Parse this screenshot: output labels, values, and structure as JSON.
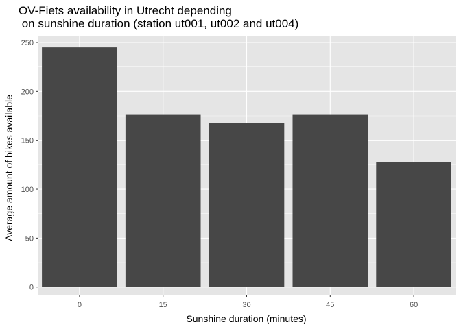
{
  "chart_data": {
    "type": "bar",
    "title_lines": [
      "OV-Fiets availability in Utrecht depending",
      " on sunshine duration (station ut001, ut002 and ut004)"
    ],
    "xlabel": "Sunshine duration (minutes)",
    "ylabel": "Average amount of bikes available",
    "categories": [
      "0",
      "15",
      "30",
      "45",
      "60"
    ],
    "values": [
      245,
      176,
      168,
      176,
      128
    ],
    "ylim": [
      -8.6,
      257
    ],
    "yticks": [
      0,
      50,
      100,
      150,
      200,
      250
    ],
    "grid": true,
    "legend": "none",
    "colors": {
      "panel_background": "#e5e5e5",
      "grid_major": "#ffffff",
      "bar_fill": "#474747",
      "tick_text": "#4d4d4d",
      "tick_mark": "#333333"
    }
  }
}
